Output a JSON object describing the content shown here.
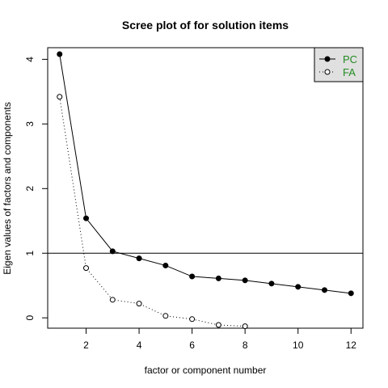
{
  "chart_data": {
    "type": "line",
    "title": "Scree plot of for solution items",
    "xlabel": "factor or component number",
    "ylabel": "Eigen values of factors and components",
    "xlim": [
      0.55,
      12.45
    ],
    "ylim": [
      -0.16,
      4.18
    ],
    "x_ticks": [
      2,
      4,
      6,
      8,
      10,
      12
    ],
    "y_ticks": [
      0,
      1,
      2,
      3,
      4
    ],
    "reference_line": 1,
    "grid": false,
    "legend_position": "top-right",
    "legend_text_color": "#228B22",
    "series": [
      {
        "name": "PC",
        "line": "solid",
        "marker": "filled-circle",
        "x": [
          1,
          2,
          3,
          4,
          5,
          6,
          7,
          8,
          9,
          10,
          11,
          12
        ],
        "y": [
          4.08,
          1.54,
          1.03,
          0.92,
          0.81,
          0.64,
          0.61,
          0.58,
          0.53,
          0.48,
          0.43,
          0.38
        ]
      },
      {
        "name": "FA",
        "line": "dotted",
        "marker": "open-circle",
        "x": [
          1,
          2,
          3,
          4,
          5,
          6,
          7,
          8
        ],
        "y": [
          3.42,
          0.77,
          0.28,
          0.22,
          0.03,
          -0.02,
          -0.11,
          -0.13
        ]
      }
    ]
  }
}
